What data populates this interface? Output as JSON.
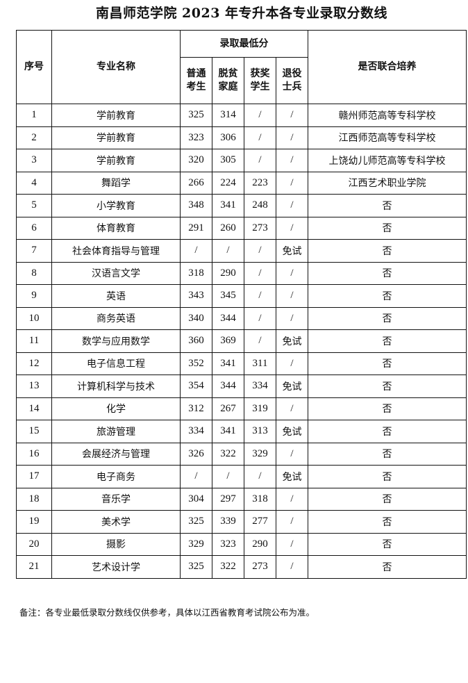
{
  "title": "南昌师范学院 2023 年专升本各专业录取分数线",
  "table": {
    "headers": {
      "index": "序号",
      "major": "专业名称",
      "min_score_group": "录取最低分",
      "regular": "普通考生",
      "poverty": "脱贫家庭",
      "award": "获奖学生",
      "veteran": "退役士兵",
      "joint": "是否联合培养"
    },
    "rows": [
      [
        "1",
        "学前教育",
        "325",
        "314",
        "/",
        "/",
        "赣州师范高等专科学校"
      ],
      [
        "2",
        "学前教育",
        "323",
        "306",
        "/",
        "/",
        "江西师范高等专科学校"
      ],
      [
        "3",
        "学前教育",
        "320",
        "305",
        "/",
        "/",
        "上饶幼儿师范高等专科学校"
      ],
      [
        "4",
        "舞蹈学",
        "266",
        "224",
        "223",
        "/",
        "江西艺术职业学院"
      ],
      [
        "5",
        "小学教育",
        "348",
        "341",
        "248",
        "/",
        "否"
      ],
      [
        "6",
        "体育教育",
        "291",
        "260",
        "273",
        "/",
        "否"
      ],
      [
        "7",
        "社会体育指导与管理",
        "/",
        "/",
        "/",
        "免试",
        "否"
      ],
      [
        "8",
        "汉语言文学",
        "318",
        "290",
        "/",
        "/",
        "否"
      ],
      [
        "9",
        "英语",
        "343",
        "345",
        "/",
        "/",
        "否"
      ],
      [
        "10",
        "商务英语",
        "340",
        "344",
        "/",
        "/",
        "否"
      ],
      [
        "11",
        "数学与应用数学",
        "360",
        "369",
        "/",
        "免试",
        "否"
      ],
      [
        "12",
        "电子信息工程",
        "352",
        "341",
        "311",
        "/",
        "否"
      ],
      [
        "13",
        "计算机科学与技术",
        "354",
        "344",
        "334",
        "免试",
        "否"
      ],
      [
        "14",
        "化学",
        "312",
        "267",
        "319",
        "/",
        "否"
      ],
      [
        "15",
        "旅游管理",
        "334",
        "341",
        "313",
        "免试",
        "否"
      ],
      [
        "16",
        "会展经济与管理",
        "326",
        "322",
        "329",
        "/",
        "否"
      ],
      [
        "17",
        "电子商务",
        "/",
        "/",
        "/",
        "免试",
        "否"
      ],
      [
        "18",
        "音乐学",
        "304",
        "297",
        "318",
        "/",
        "否"
      ],
      [
        "19",
        "美术学",
        "325",
        "339",
        "277",
        "/",
        "否"
      ],
      [
        "20",
        "摄影",
        "329",
        "323",
        "290",
        "/",
        "否"
      ],
      [
        "21",
        "艺术设计学",
        "325",
        "322",
        "273",
        "/",
        "否"
      ]
    ]
  },
  "note": "备注：各专业最低录取分数线仅供参考，具体以江西省教育考试院公布为准。"
}
